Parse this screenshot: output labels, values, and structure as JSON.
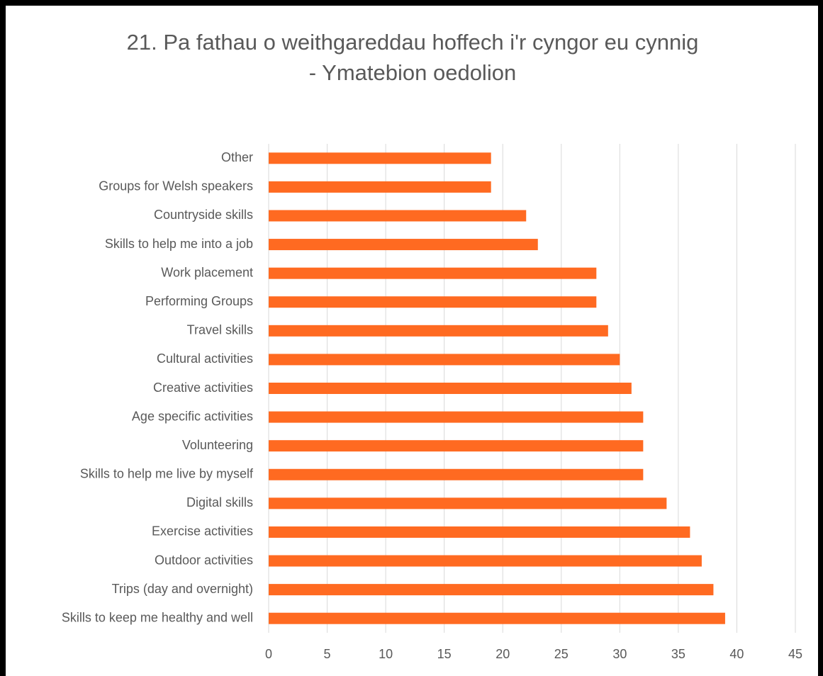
{
  "chart_data": {
    "type": "bar",
    "orientation": "horizontal",
    "title": [
      "21. Pa fathau o weithgareddau hoffech i'r cyngor eu cynnig",
      "- Ymatebion oedolion"
    ],
    "categories": [
      "Other",
      "Groups for Welsh speakers",
      "Countryside skills",
      "Skills to help me into a job",
      "Work placement",
      "Performing Groups",
      "Travel skills",
      "Cultural activities",
      "Creative activities",
      "Age specific activities",
      "Volunteering",
      "Skills to help me live by myself",
      "Digital skills",
      "Exercise activities",
      "Outdoor activities",
      "Trips (day and overnight)",
      "Skills to keep me healthy and well"
    ],
    "values": [
      19,
      19,
      22,
      23,
      28,
      28,
      29,
      30,
      31,
      32,
      32,
      32,
      34,
      36,
      37,
      38,
      39
    ],
    "color": "#ff6a21",
    "xlim": [
      0,
      45
    ],
    "xticks": [
      0,
      5,
      10,
      15,
      20,
      25,
      30,
      35,
      40,
      45
    ],
    "grid": true
  }
}
